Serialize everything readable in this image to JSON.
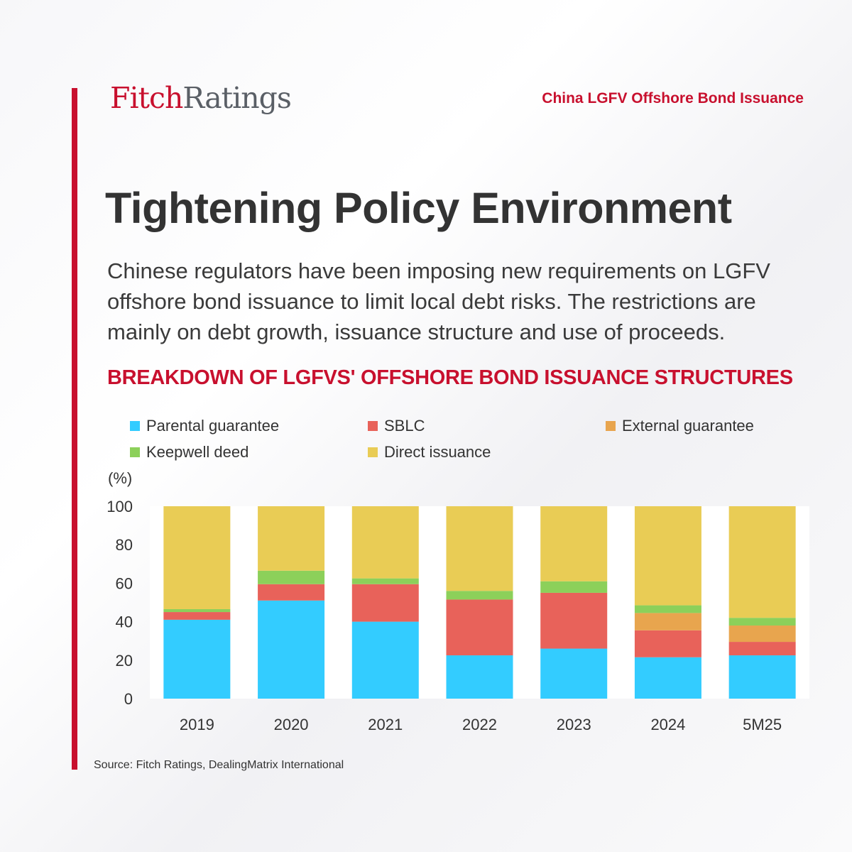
{
  "header": {
    "logo_fitch": "Fitch",
    "logo_ratings": "Ratings",
    "topic": "China LGFV Offshore Bond Issuance"
  },
  "headline": "Tightening Policy Environment",
  "summary": "Chinese regulators have been imposing new requirements on LGFV offshore bond issuance to limit local debt risks. The restrictions are mainly on debt growth, issuance structure and use of proceeds.",
  "colors": {
    "accent": "#c8102e",
    "parental_guarantee": "#33ccff",
    "sblc": "#e8625a",
    "external_guarantee": "#e8a54e",
    "keepwell_deed": "#8cd05a",
    "direct_issuance": "#e9cc55"
  },
  "chart_data": {
    "type": "bar",
    "stacked": true,
    "title": "BREAKDOWN OF LGFVS' OFFSHORE BOND ISSUANCE STRUCTURES",
    "ylabel": "(%)",
    "ylim": [
      0,
      100
    ],
    "yticks": [
      "0",
      "20",
      "40",
      "60",
      "80",
      "100"
    ],
    "grid": false,
    "legend_position": "top",
    "categories": [
      "2019",
      "2020",
      "2021",
      "2022",
      "2023",
      "2024",
      "5M25"
    ],
    "series": [
      {
        "name": "Parental guarantee",
        "color": "#33ccff",
        "values": [
          41,
          51,
          40,
          22.5,
          26,
          21.5,
          22.5
        ]
      },
      {
        "name": "SBLC",
        "color": "#e8625a",
        "values": [
          4,
          8.5,
          19.5,
          29,
          29,
          14,
          7
        ]
      },
      {
        "name": "External guarantee",
        "color": "#e8a54e",
        "values": [
          0,
          0,
          0,
          0,
          0,
          9,
          8.5
        ]
      },
      {
        "name": "Keepwell deed",
        "color": "#8cd05a",
        "values": [
          1.5,
          7,
          3,
          4.5,
          6,
          4,
          4
        ]
      },
      {
        "name": "Direct issuance",
        "color": "#e9cc55",
        "values": [
          53.5,
          33.5,
          37.5,
          44,
          39,
          51.5,
          58
        ]
      }
    ]
  },
  "source": "Source: Fitch Ratings, DealingMatrix International"
}
